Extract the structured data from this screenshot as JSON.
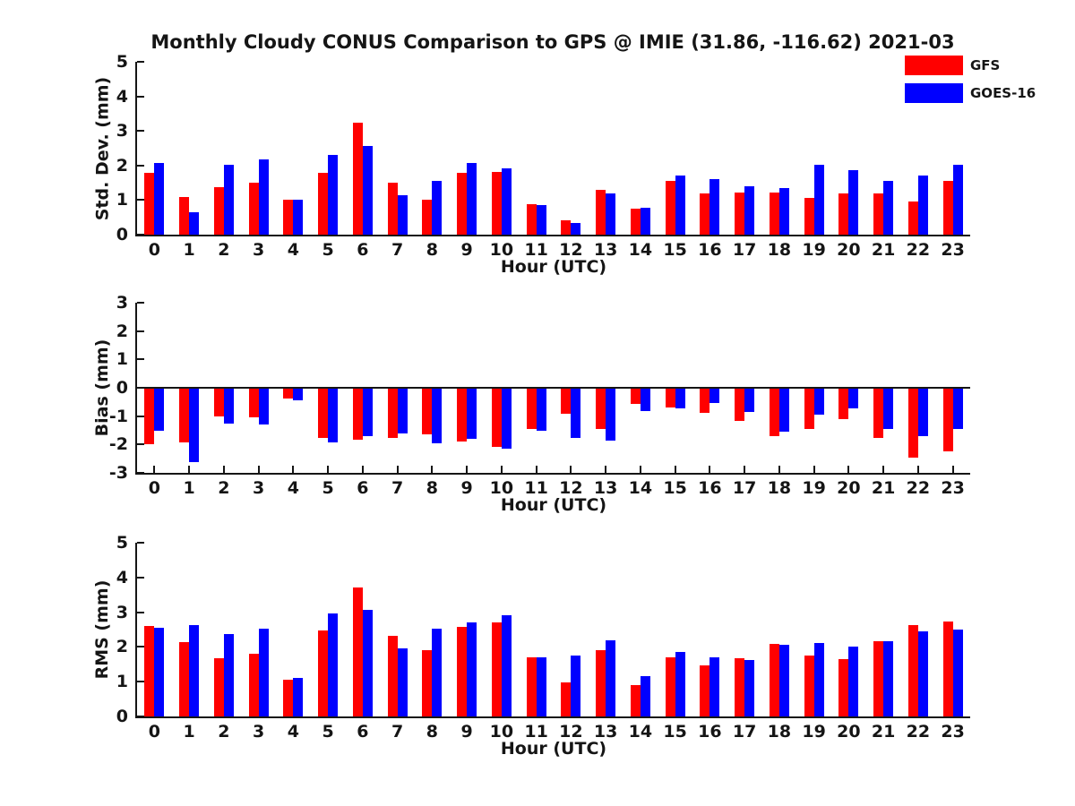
{
  "title": "Monthly Cloudy CONUS Comparison to GPS @ IMIE (31.86, -116.62) 2021-03",
  "legend": {
    "position": "top-right",
    "items": [
      {
        "label": "GFS",
        "color": "#ff0000"
      },
      {
        "label": "GOES-16",
        "color": "#0000ff"
      }
    ]
  },
  "colors": {
    "gfs": "#ff0000",
    "goes16": "#0000ff",
    "axis": "#151515",
    "background": "#ffffff"
  },
  "chart_data": [
    {
      "type": "bar",
      "ylabel": "Std. Dev. (mm)",
      "xlabel": "Hour (UTC)",
      "categories": [
        "0",
        "1",
        "2",
        "3",
        "4",
        "5",
        "6",
        "7",
        "8",
        "9",
        "10",
        "11",
        "12",
        "13",
        "14",
        "15",
        "16",
        "17",
        "18",
        "19",
        "20",
        "21",
        "22",
        "23"
      ],
      "ylim": [
        0,
        5
      ],
      "yticks": [
        0,
        1,
        2,
        3,
        4,
        5
      ],
      "grid": false,
      "series": [
        {
          "name": "GFS",
          "color": "#ff0000",
          "values": [
            1.78,
            1.08,
            1.38,
            1.5,
            1.0,
            1.8,
            3.25,
            1.5,
            1.0,
            1.8,
            1.82,
            0.87,
            0.42,
            1.3,
            0.75,
            1.56,
            1.18,
            1.22,
            1.22,
            1.05,
            1.18,
            1.18,
            0.97,
            1.55
          ]
        },
        {
          "name": "GOES-16",
          "color": "#0000ff",
          "values": [
            2.07,
            0.66,
            2.02,
            2.17,
            1.02,
            2.3,
            2.56,
            1.13,
            1.55,
            2.07,
            1.93,
            0.86,
            0.34,
            1.2,
            0.79,
            1.71,
            1.6,
            1.4,
            1.34,
            2.01,
            1.86,
            1.55,
            1.71,
            2.03
          ]
        }
      ]
    },
    {
      "type": "bar",
      "ylabel": "Bias (mm)",
      "xlabel": "Hour (UTC)",
      "categories": [
        "0",
        "1",
        "2",
        "3",
        "4",
        "5",
        "6",
        "7",
        "8",
        "9",
        "10",
        "11",
        "12",
        "13",
        "14",
        "15",
        "16",
        "17",
        "18",
        "19",
        "20",
        "21",
        "22",
        "23"
      ],
      "ylim": [
        -3,
        3
      ],
      "yticks": [
        -3,
        -2,
        -1,
        0,
        1,
        2,
        3
      ],
      "grid": false,
      "series": [
        {
          "name": "GFS",
          "color": "#ff0000",
          "values": [
            -2.0,
            -1.93,
            -1.0,
            -1.03,
            -0.38,
            -1.76,
            -1.83,
            -1.76,
            -1.63,
            -1.9,
            -2.07,
            -1.45,
            -0.9,
            -1.45,
            -0.57,
            -0.7,
            -0.88,
            -1.18,
            -1.72,
            -1.46,
            -1.1,
            -1.76,
            -2.45,
            -2.25
          ]
        },
        {
          "name": "GOES-16",
          "color": "#0000ff",
          "values": [
            -1.52,
            -2.62,
            -1.27,
            -1.3,
            -0.43,
            -1.92,
            -1.7,
            -1.62,
            -1.97,
            -1.8,
            -2.15,
            -1.5,
            -1.76,
            -1.85,
            -0.82,
            -0.74,
            -0.53,
            -0.84,
            -1.55,
            -0.95,
            -0.72,
            -1.45,
            -1.71,
            -1.45
          ]
        }
      ]
    },
    {
      "type": "bar",
      "ylabel": "RMS (mm)",
      "xlabel": "Hour (UTC)",
      "categories": [
        "0",
        "1",
        "2",
        "3",
        "4",
        "5",
        "6",
        "7",
        "8",
        "9",
        "10",
        "11",
        "12",
        "13",
        "14",
        "15",
        "16",
        "17",
        "18",
        "19",
        "20",
        "21",
        "22",
        "23"
      ],
      "ylim": [
        0,
        5
      ],
      "yticks": [
        0,
        1,
        2,
        3,
        4,
        5
      ],
      "grid": false,
      "series": [
        {
          "name": "GFS",
          "color": "#ff0000",
          "values": [
            2.6,
            2.15,
            1.67,
            1.81,
            1.05,
            2.47,
            3.7,
            2.32,
            1.9,
            2.58,
            2.71,
            1.71,
            0.98,
            1.92,
            0.91,
            1.7,
            1.46,
            1.68,
            2.1,
            1.75,
            1.65,
            2.16,
            2.63,
            2.72
          ]
        },
        {
          "name": "GOES-16",
          "color": "#0000ff",
          "values": [
            2.55,
            2.64,
            2.37,
            2.52,
            1.1,
            2.97,
            3.06,
            1.96,
            2.52,
            2.7,
            2.9,
            1.71,
            1.76,
            2.2,
            1.15,
            1.85,
            1.71,
            1.63,
            2.05,
            2.12,
            2.0,
            2.16,
            2.45,
            2.5
          ]
        }
      ]
    }
  ]
}
